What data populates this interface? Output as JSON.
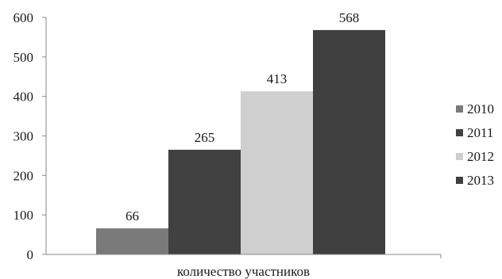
{
  "chart_data": {
    "type": "bar",
    "categories": [
      "количество участников"
    ],
    "series": [
      {
        "name": "2010",
        "values": [
          66
        ],
        "color": "#7a7a7a"
      },
      {
        "name": "2011",
        "values": [
          265
        ],
        "color": "#414141"
      },
      {
        "name": "2012",
        "values": [
          413
        ],
        "color": "#cfcfcf"
      },
      {
        "name": "2013",
        "values": [
          568
        ],
        "color": "#3f3f3f"
      }
    ],
    "ylim": [
      0,
      600
    ],
    "yticks": [
      0,
      100,
      200,
      300,
      400,
      500,
      600
    ],
    "grid": false,
    "legend": "right",
    "data_labels": true
  }
}
